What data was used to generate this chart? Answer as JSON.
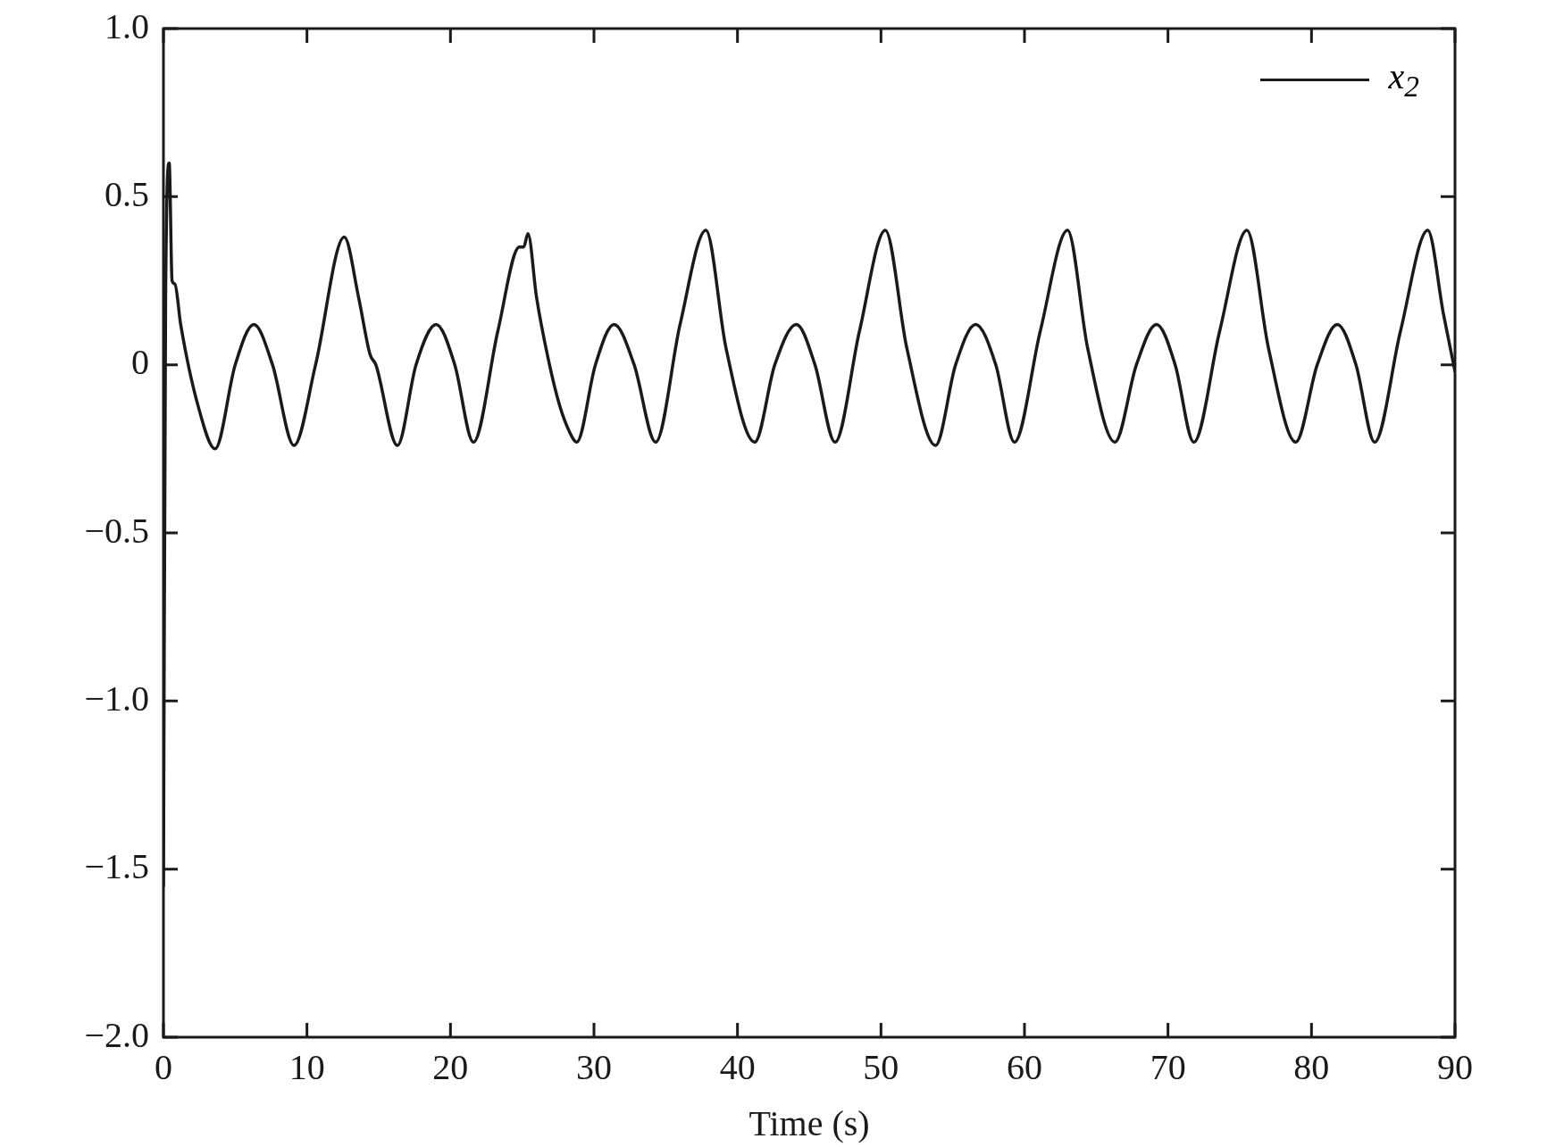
{
  "chart_data": {
    "type": "line",
    "xlabel": "Time (s)",
    "legend": "top right",
    "marker": "none",
    "line_style": "solid",
    "grid": false,
    "xlim": [
      0,
      90
    ],
    "xticks": [
      0,
      10,
      20,
      30,
      40,
      50,
      60,
      70,
      80,
      90
    ],
    "ylim": [
      -2.0,
      1.0
    ],
    "yticks": [
      {
        "value": -2,
        "label": "−2.0"
      },
      {
        "value": -1.5,
        "label": "−1.5"
      },
      {
        "value": -1,
        "label": "−1.0"
      },
      {
        "value": -0.5,
        "label": "−0.5"
      },
      0,
      {
        "value": 0.5,
        "label": "0.5"
      },
      {
        "value": 1,
        "label": "1.0"
      }
    ],
    "series": [
      {
        "name": "x$_{2}$",
        "color": "#1a1a1a",
        "x": [
          0,
          0.15,
          0.4,
          0.6,
          0.8,
          1.2,
          2.4,
          3.6,
          5.0,
          6.3,
          7.6,
          9.1,
          10.6,
          12.6,
          13.6,
          14.4,
          14.8,
          16.3,
          17.6,
          19.0,
          20.3,
          21.6,
          23.3,
          24.8,
          25.1,
          25.4,
          26.0,
          26.8,
          27.6,
          28.3,
          28.8,
          30.1,
          31.4,
          32.8,
          34.3,
          36.0,
          37.8,
          39.2,
          41.2,
          42.6,
          44.1,
          45.4,
          46.8,
          48.5,
          50.3,
          51.8,
          53.8,
          55.2,
          56.6,
          58.0,
          59.3,
          61.1,
          63.0,
          64.4,
          66.3,
          67.8,
          69.2,
          70.5,
          71.8,
          73.6,
          75.5,
          77.0,
          78.9,
          80.4,
          81.8,
          83.1,
          84.4,
          86.2,
          88.1,
          89.2,
          90
        ],
        "values": [
          -1.55,
          0.2,
          0.6,
          0.25,
          0.24,
          0.12,
          -0.12,
          -0.25,
          0,
          0.12,
          0,
          -0.24,
          0,
          0.38,
          0.2,
          0.03,
          0,
          -0.24,
          0,
          0.12,
          0,
          -0.23,
          0.1,
          0.35,
          0.35,
          0.39,
          0.2,
          0.02,
          -0.12,
          -0.2,
          -0.23,
          0,
          0.12,
          0,
          -0.23,
          0.12,
          0.4,
          0.05,
          -0.23,
          0,
          0.12,
          0,
          -0.23,
          0.1,
          0.4,
          0.05,
          -0.24,
          0,
          0.12,
          0,
          -0.23,
          0.1,
          0.4,
          0.05,
          -0.23,
          0,
          0.12,
          0,
          -0.23,
          0.1,
          0.4,
          0.05,
          -0.23,
          0,
          0.12,
          0,
          -0.23,
          0.1,
          0.4,
          0.15,
          -0.02
        ]
      }
    ]
  }
}
